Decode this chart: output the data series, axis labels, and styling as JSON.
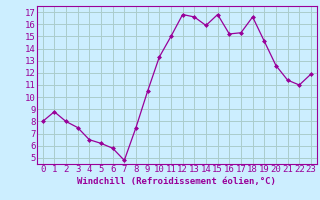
{
  "x": [
    0,
    1,
    2,
    3,
    4,
    5,
    6,
    7,
    8,
    9,
    10,
    11,
    12,
    13,
    14,
    15,
    16,
    17,
    18,
    19,
    20,
    21,
    22,
    23
  ],
  "y": [
    8.0,
    8.8,
    8.0,
    7.5,
    6.5,
    6.2,
    5.8,
    4.8,
    7.5,
    10.5,
    13.3,
    15.0,
    16.8,
    16.6,
    15.9,
    16.8,
    15.2,
    15.3,
    16.6,
    14.6,
    12.6,
    11.4,
    11.0,
    11.9
  ],
  "line_color": "#990099",
  "marker": "D",
  "marker_size": 2,
  "bg_color": "#cceeff",
  "grid_color": "#aacccc",
  "xlabel": "Windchill (Refroidissement éolien,°C)",
  "xlabel_color": "#990099",
  "tick_color": "#990099",
  "ylim": [
    4.5,
    17.5
  ],
  "xlim": [
    -0.5,
    23.5
  ],
  "yticks": [
    5,
    6,
    7,
    8,
    9,
    10,
    11,
    12,
    13,
    14,
    15,
    16,
    17
  ],
  "xticks": [
    0,
    1,
    2,
    3,
    4,
    5,
    6,
    7,
    8,
    9,
    10,
    11,
    12,
    13,
    14,
    15,
    16,
    17,
    18,
    19,
    20,
    21,
    22,
    23
  ],
  "font_size": 6.5
}
